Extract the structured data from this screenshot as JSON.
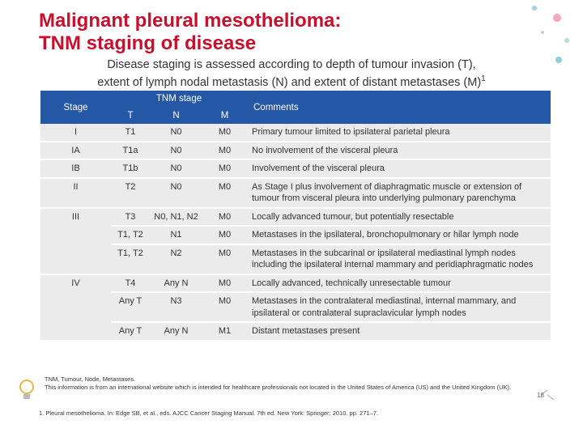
{
  "header": {
    "title": [
      "Malignant pleural mesothelioma:",
      "TNM staging of disease"
    ],
    "subtitle": [
      "Disease staging is assessed according to depth of tumour invasion (T),",
      "extent of lymph nodal metastasis (N) and extent of distant metastases (M)"
    ],
    "subtitle_superscript": "1"
  },
  "table": {
    "columns": {
      "stage": "Stage",
      "tnm": "TNM stage",
      "t": "T",
      "n": "N",
      "m": "M",
      "comments": "Comments"
    },
    "rows": [
      {
        "stage": "I",
        "t": "T1",
        "n": "N0",
        "m": "M0",
        "comments": "Primary tumour limited to ipsilateral parietal pleura"
      },
      {
        "stage": "IA",
        "t": "T1a",
        "n": "N0",
        "m": "M0",
        "comments": "No involvement of the visceral pleura"
      },
      {
        "stage": "IB",
        "t": "T1b",
        "n": "N0",
        "m": "M0",
        "comments": "Involvement of the visceral pleura"
      },
      {
        "stage": "II",
        "t": "T2",
        "n": "N0",
        "m": "M0",
        "comments": "As Stage I plus involvement of diaphragmatic muscle or extension of tumour from visceral pleura into underlying pulmonary parenchyma"
      },
      {
        "stage": "III",
        "t": "T3",
        "n": "N0, N1, N2",
        "m": "M0",
        "comments": "Locally advanced tumour, but potentially resectable"
      },
      {
        "t": "T1, T2",
        "n": "N1",
        "m": "M0",
        "comments": "Metastases in the ipsilateral, bronchopulmonary or hilar lymph node"
      },
      {
        "t": "T1, T2",
        "n": "N2",
        "m": "M0",
        "comments": "Metastases in the subcarinal or ipsilateral mediastinal lymph nodes including the ipsilateral internal mammary and peridiaphragmatic nodes"
      },
      {
        "stage": "IV",
        "t": "T4",
        "n": "Any N",
        "m": "M0",
        "comments": "Locally advanced, technically unresectable tumour"
      },
      {
        "t": "Any T",
        "n": "N3",
        "m": "M0",
        "comments": "Metastases in the contralateral mediastinal, internal mammary, and ipsilateral or contralateral supraclavicular lymph nodes"
      },
      {
        "t": "Any T",
        "n": "Any N",
        "m": "M1",
        "comments": "Distant metastases present"
      }
    ]
  },
  "footer": {
    "notes": [
      "TNM, Tumour, Node, Metastases.",
      "This information is from an international website which is intended for healthcare professionals not located in the United States of America (US) and the United Kingdom (UK)."
    ],
    "reference": "1. Pleural mesothelioma. In: Edge SB, et al., eds. AJCC Cancer Staging Manual. 7th ed. New York: Springer; 2010. pp. 271–7.",
    "page": "18"
  }
}
